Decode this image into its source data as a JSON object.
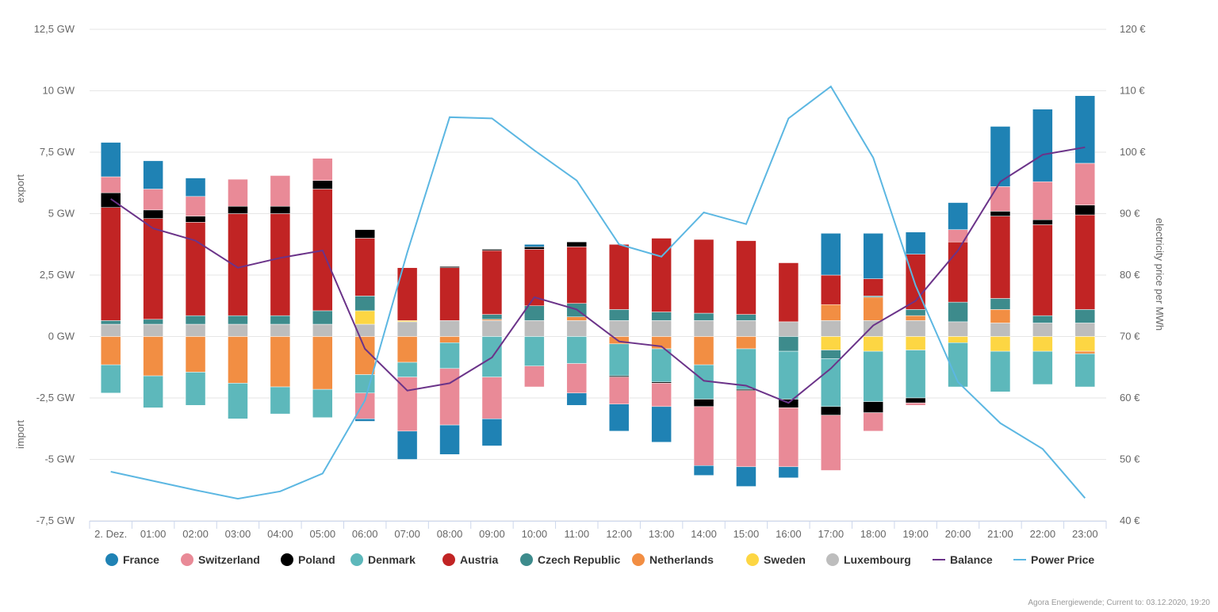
{
  "chart_data": {
    "type": "bar",
    "stacked": true,
    "title": "",
    "ylabel_top": "export",
    "ylabel_bottom": "import",
    "y2label": "electricity price per MWh",
    "ylim": [
      -7.5,
      12.5
    ],
    "y2lim": [
      40,
      120
    ],
    "yticks": [
      "-7,5 GW",
      "-5 GW",
      "-2,5 GW",
      "0 GW",
      "2,5 GW",
      "5 GW",
      "7,5 GW",
      "10 GW",
      "12,5 GW"
    ],
    "ytick_values": [
      -7.5,
      -5,
      -2.5,
      0,
      2.5,
      5,
      7.5,
      10,
      12.5
    ],
    "y2ticks": [
      "40 €",
      "50 €",
      "60 €",
      "70 €",
      "80 €",
      "90 €",
      "100 €",
      "110 €",
      "120 €"
    ],
    "y2tick_values": [
      40,
      50,
      60,
      70,
      80,
      90,
      100,
      110,
      120
    ],
    "grid": true,
    "legend_position": "bottom",
    "categories": [
      "2. Dez.",
      "01:00",
      "02:00",
      "03:00",
      "04:00",
      "05:00",
      "06:00",
      "07:00",
      "08:00",
      "09:00",
      "10:00",
      "11:00",
      "12:00",
      "13:00",
      "14:00",
      "15:00",
      "16:00",
      "17:00",
      "18:00",
      "19:00",
      "20:00",
      "21:00",
      "22:00",
      "23:00"
    ],
    "series": [
      {
        "name": "Luxembourg",
        "color": "#bdbdbd",
        "values": [
          0.5,
          0.5,
          0.5,
          0.5,
          0.5,
          0.5,
          0.5,
          0.6,
          0.65,
          0.65,
          0.65,
          0.65,
          0.65,
          0.65,
          0.65,
          0.65,
          0.6,
          0.65,
          0.65,
          0.65,
          0.6,
          0.55,
          0.55,
          0.55
        ]
      },
      {
        "name": "Sweden",
        "color": "#fdd643",
        "values": [
          0,
          0,
          0,
          0,
          0,
          0,
          0.55,
          0.05,
          0,
          0,
          0,
          0,
          0,
          0,
          0,
          0,
          0,
          -0.55,
          -0.6,
          -0.55,
          -0.25,
          -0.6,
          -0.6,
          -0.6
        ]
      },
      {
        "name": "Netherlands",
        "color": "#f28e43",
        "values": [
          -1.15,
          -1.6,
          -1.45,
          -1.9,
          -2.05,
          -2.15,
          -1.55,
          -1.05,
          -0.25,
          0.05,
          0,
          0.15,
          -0.3,
          -0.5,
          -1.15,
          -0.5,
          0,
          0.65,
          0.95,
          0.2,
          0,
          0.55,
          0,
          -0.1
        ]
      },
      {
        "name": "Czech Republic",
        "color": "#3d8b8c",
        "values": [
          0.15,
          0.2,
          0.35,
          0.35,
          0.35,
          0.55,
          0.6,
          0,
          0,
          0.2,
          0.6,
          0.55,
          0.45,
          0.35,
          0.3,
          0.25,
          -0.6,
          -0.35,
          0.05,
          0.25,
          0.8,
          0.45,
          0.3,
          0.55
        ]
      },
      {
        "name": "Denmark",
        "color": "#5db8bb",
        "values": [
          -1.15,
          -1.3,
          -1.35,
          -1.45,
          -1.1,
          -1.15,
          -0.75,
          -0.6,
          -1.05,
          -1.65,
          -1.2,
          -1.1,
          -1.3,
          -1.35,
          -1.4,
          -1.65,
          -1.95,
          -1.95,
          -2.05,
          -1.95,
          -1.8,
          -1.65,
          -1.35,
          -1.35
        ]
      },
      {
        "name": "Austria",
        "color": "#c12424",
        "values": [
          4.6,
          4.1,
          3.8,
          4.15,
          4.15,
          4.95,
          2.35,
          2.15,
          2.15,
          2.6,
          2.3,
          2.3,
          2.65,
          3.0,
          3.0,
          3.0,
          2.4,
          1.2,
          0.7,
          2.25,
          2.45,
          3.35,
          3.7,
          3.85
        ]
      },
      {
        "name": "Poland",
        "color": "#000000",
        "values": [
          0.6,
          0.35,
          0.25,
          0.3,
          0.3,
          0.35,
          0.35,
          0,
          0.05,
          0.05,
          0.1,
          0.2,
          -0.05,
          -0.05,
          -0.3,
          -0.05,
          -0.35,
          -0.35,
          -0.45,
          -0.2,
          0,
          0.2,
          0.2,
          0.4
        ]
      },
      {
        "name": "Switzerland",
        "color": "#e98a97",
        "values": [
          0.65,
          0.85,
          0.8,
          1.1,
          1.25,
          0.9,
          -1.05,
          -2.2,
          -2.3,
          -1.7,
          -0.85,
          -1.2,
          -1.1,
          -0.95,
          -2.4,
          -3.1,
          -2.4,
          -2.25,
          -0.75,
          -0.1,
          0.5,
          1.0,
          1.55,
          1.7
        ]
      },
      {
        "name": "France",
        "color": "#1f82b4",
        "values": [
          1.4,
          1.15,
          0.75,
          0,
          0,
          0,
          -0.1,
          -1.15,
          -1.2,
          -1.1,
          0.1,
          -0.5,
          -1.1,
          -1.45,
          -0.4,
          -0.8,
          -0.45,
          1.7,
          1.85,
          0.9,
          1.1,
          2.45,
          2.95,
          2.75
        ]
      }
    ],
    "lines": [
      {
        "name": "Balance",
        "color": "#6b3389",
        "axis": "left",
        "values": [
          5.6,
          4.4,
          3.9,
          2.8,
          3.2,
          3.5,
          -0.5,
          -2.2,
          -1.9,
          -0.85,
          1.6,
          1.1,
          -0.2,
          -0.4,
          -1.8,
          -2.0,
          -2.7,
          -1.3,
          0.45,
          1.45,
          3.5,
          6.3,
          7.4,
          7.7
        ]
      },
      {
        "name": "Power Price",
        "color": "#5cb7e2",
        "axis": "right",
        "values": [
          48.0,
          46.5,
          45.0,
          43.6,
          44.8,
          47.7,
          59.6,
          83.7,
          105.7,
          105.5,
          100.3,
          95.4,
          85.0,
          83.0,
          90.2,
          88.3,
          105.5,
          110.7,
          99.1,
          78.3,
          62.6,
          55.9,
          51.7,
          43.7
        ]
      }
    ]
  },
  "legend": {
    "items": [
      {
        "label": "France",
        "color": "#1f82b4",
        "kind": "dot"
      },
      {
        "label": "Switzerland",
        "color": "#e98a97",
        "kind": "dot"
      },
      {
        "label": "Poland",
        "color": "#000000",
        "kind": "dot"
      },
      {
        "label": "Denmark",
        "color": "#5db8bb",
        "kind": "dot"
      },
      {
        "label": "Austria",
        "color": "#c12424",
        "kind": "dot"
      },
      {
        "label": "Czech Republic",
        "color": "#3d8b8c",
        "kind": "dot"
      },
      {
        "label": "Netherlands",
        "color": "#f28e43",
        "kind": "dot"
      },
      {
        "label": "Sweden",
        "color": "#fdd643",
        "kind": "dot"
      },
      {
        "label": "Luxembourg",
        "color": "#bdbdbd",
        "kind": "dot"
      },
      {
        "label": "Balance",
        "color": "#6b3389",
        "kind": "line"
      },
      {
        "label": "Power Price",
        "color": "#5cb7e2",
        "kind": "line"
      }
    ]
  },
  "credits": "Agora Energiewende; Current to: 03.12.2020, 19:20"
}
